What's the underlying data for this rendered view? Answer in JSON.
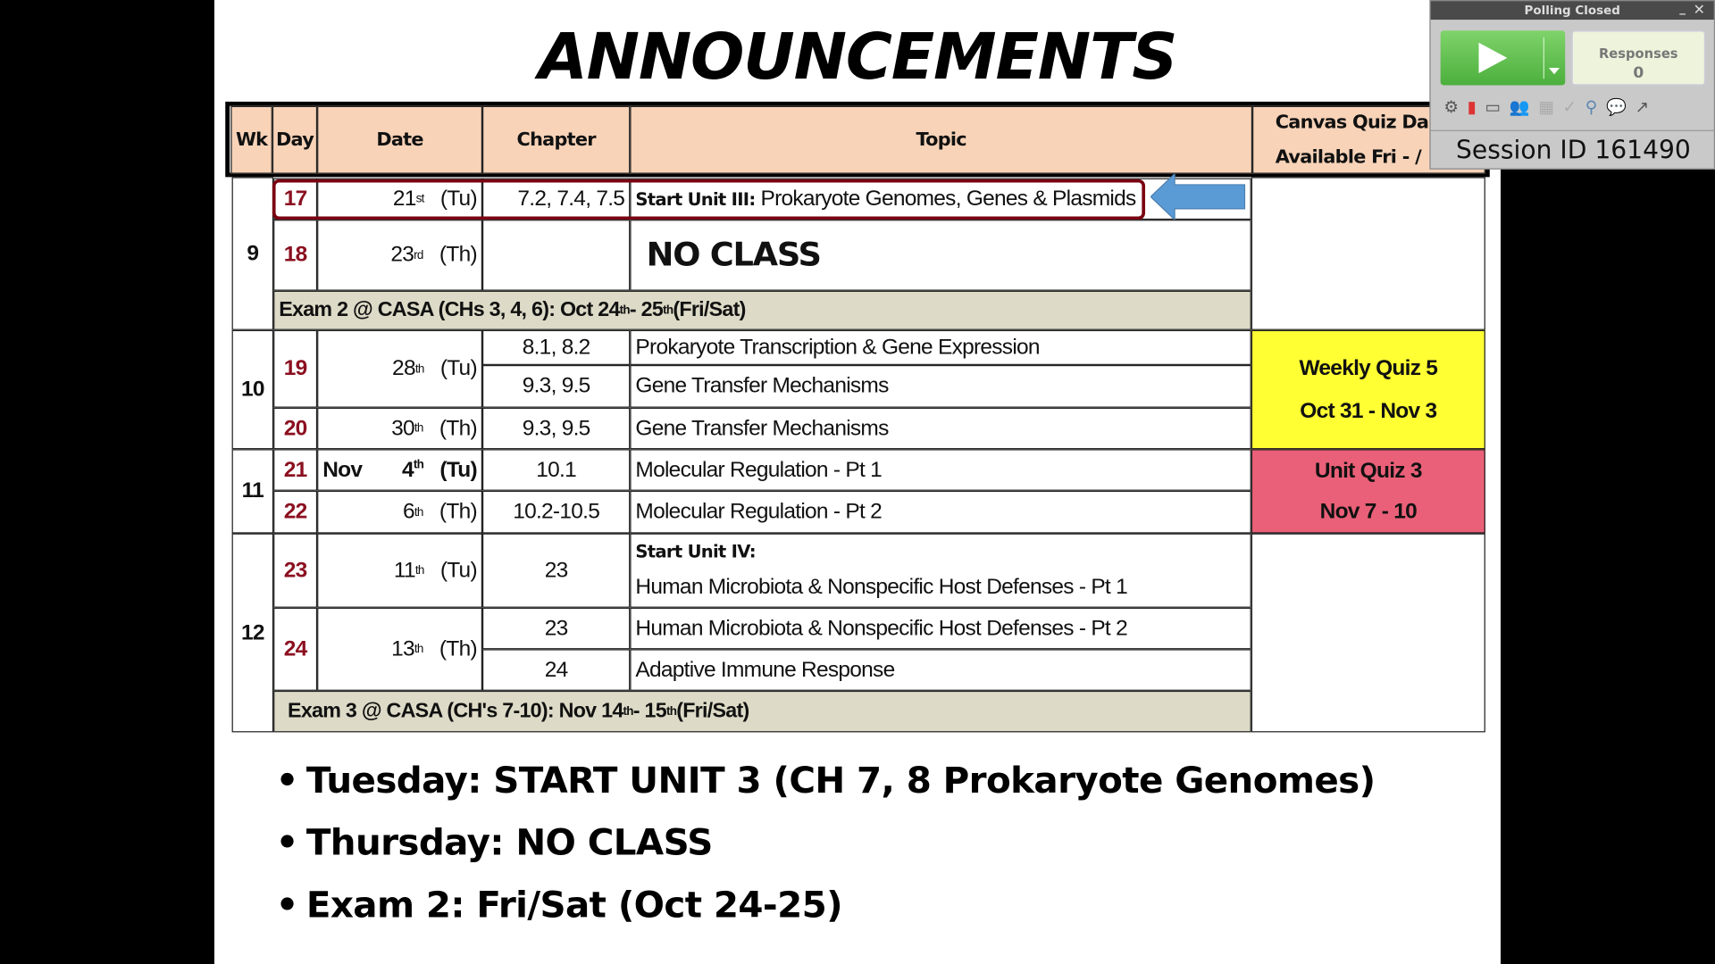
{
  "slide": {
    "title": "ANNOUNCEMENTS",
    "table": {
      "headers": {
        "wk": "Wk",
        "day": "Day",
        "date": "Date",
        "chapter": "Chapter",
        "topic": "Topic",
        "canvas_line1": "Canvas Quiz Da",
        "canvas_line2": "Available Fri - /"
      },
      "rows": [
        {
          "wk": "9",
          "day": "17",
          "date": "21",
          "sup": "st",
          "dow": "(Tu)",
          "chapter": "7.2, 7.4, 7.5",
          "topic_bold": "Start Unit III:",
          "topic": "Prokaryote Genomes, Genes & Plasmids"
        },
        {
          "day": "18",
          "date": "23",
          "sup": "rd",
          "dow": "(Th)",
          "chapter": "",
          "topic": "NO CLASS"
        },
        {
          "wk": "10",
          "day": "19",
          "date": "28",
          "sup": "th",
          "dow": "(Tu)",
          "chapter": "8.1, 8.2",
          "topic": "Prokaryote Transcription & Gene Expression",
          "chapter2": "9.3, 9.5",
          "topic2": "Gene Transfer Mechanisms"
        },
        {
          "day": "20",
          "date": "30",
          "sup": "th",
          "dow": "(Th)",
          "chapter": "9.3, 9.5",
          "topic": "Gene Transfer Mechanisms"
        },
        {
          "wk": "11",
          "day": "21",
          "month": "Nov",
          "date": "4",
          "sup": "th",
          "dow": "(Tu)",
          "chapter": "10.1",
          "topic": "Molecular Regulation - Pt 1"
        },
        {
          "day": "22",
          "date": "6",
          "sup": "th",
          "dow": "(Th)",
          "chapter": "10.2-10.5",
          "topic": "Molecular Regulation - Pt 2"
        },
        {
          "wk": "12",
          "day": "23",
          "date": "11",
          "sup": "th",
          "dow": "(Tu)",
          "chapter": "23",
          "topic_bold": "Start Unit IV:",
          "topic": "Human Microbiota & Nonspecific Host Defenses - Pt 1"
        },
        {
          "day": "24",
          "date": "13",
          "sup": "th",
          "dow": "(Th)",
          "chapter": "23",
          "topic": "Human Microbiota & Nonspecific Host Defenses - Pt 2",
          "chapter2": "24",
          "topic2": "Adaptive Immune Response"
        }
      ],
      "exam2": {
        "pre": "Exam 2 @ CASA (CHs 3, 4, 6): Oct 24",
        "s1": "th",
        "mid": " - 25",
        "s2": "th",
        "post": " (Fri/Sat)"
      },
      "exam3": {
        "pre": "Exam 3 @ CASA (CH's 7-10): Nov 14",
        "s1": "th",
        "mid": " - 15",
        "s2": "th",
        "post": " (Fri/Sat)"
      },
      "quiz5": {
        "line1": "Weekly  Quiz 5",
        "line2": "Oct 31 - Nov 3",
        "color": "#ffff33"
      },
      "unitquiz3": {
        "line1": "Unit Quiz 3",
        "line2": "Nov 7 - 10",
        "color": "#ea6078"
      }
    },
    "bullets": [
      "Tuesday:  START UNIT 3 (CH 7, 8 Prokaryote Genomes)",
      "Thursday:  NO CLASS",
      "Exam 2:  Fri/Sat (Oct 24-25)"
    ]
  },
  "polling": {
    "title": "Polling Closed",
    "responses_label": "Responses",
    "responses_count": "0",
    "session": "Session ID 161490",
    "accent": "#5cb85c"
  }
}
